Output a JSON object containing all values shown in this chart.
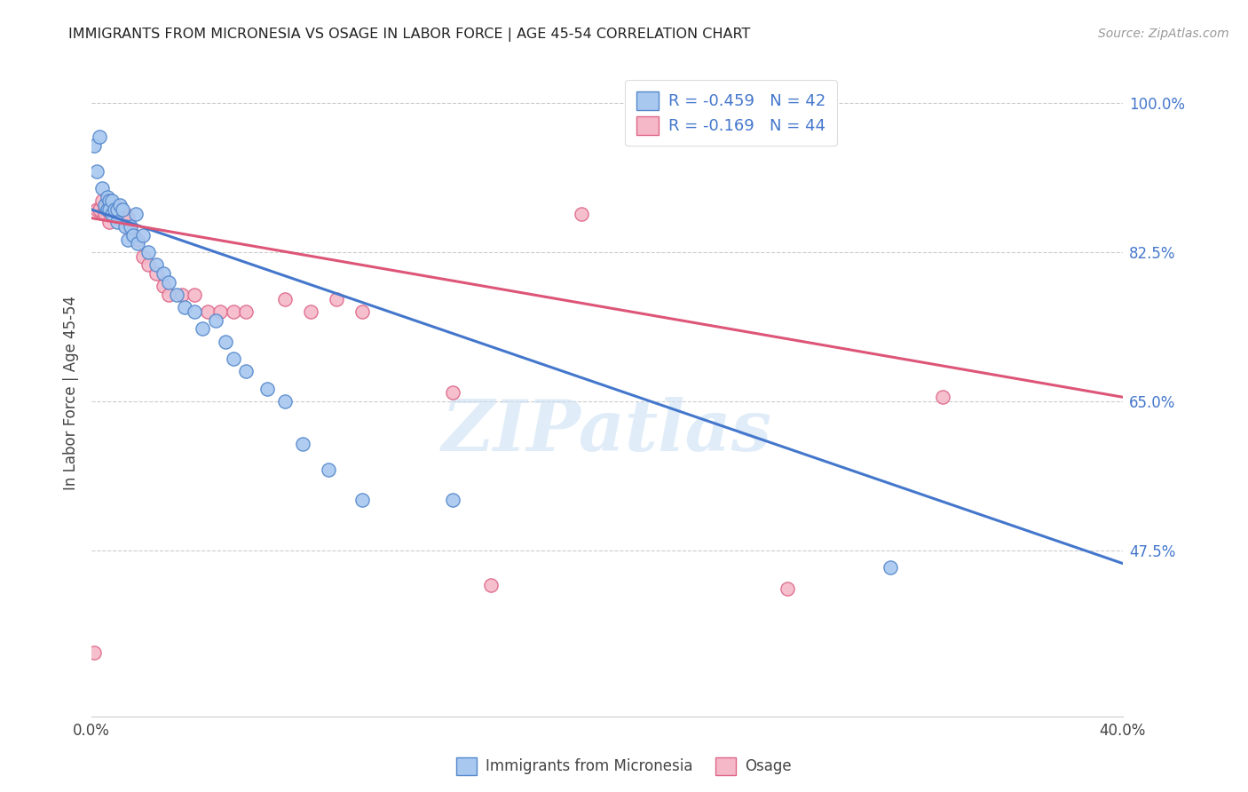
{
  "title": "IMMIGRANTS FROM MICRONESIA VS OSAGE IN LABOR FORCE | AGE 45-54 CORRELATION CHART",
  "source": "Source: ZipAtlas.com",
  "ylabel": "In Labor Force | Age 45-54",
  "xlim": [
    0.0,
    0.4
  ],
  "ylim": [
    0.28,
    1.04
  ],
  "xtick_labels": [
    "0.0%",
    "40.0%"
  ],
  "xtick_values": [
    0.0,
    0.4
  ],
  "ytick_labels": [
    "100.0%",
    "82.5%",
    "65.0%",
    "47.5%"
  ],
  "ytick_values": [
    1.0,
    0.825,
    0.65,
    0.475
  ],
  "legend_r_blue": "-0.459",
  "legend_n_blue": "42",
  "legend_r_pink": "-0.169",
  "legend_n_pink": "44",
  "blue_color": "#a8c8f0",
  "pink_color": "#f5b8c8",
  "blue_edge_color": "#5588cc",
  "pink_edge_color": "#dd6688",
  "blue_line_color": "#4477cc",
  "pink_line_color": "#dd5577",
  "watermark": "ZIPatlas",
  "blue_scatter_x": [
    0.001,
    0.002,
    0.003,
    0.004,
    0.005,
    0.006,
    0.006,
    0.007,
    0.007,
    0.008,
    0.008,
    0.009,
    0.01,
    0.01,
    0.011,
    0.012,
    0.013,
    0.014,
    0.015,
    0.016,
    0.017,
    0.018,
    0.02,
    0.022,
    0.025,
    0.028,
    0.03,
    0.033,
    0.036,
    0.04,
    0.043,
    0.048,
    0.052,
    0.055,
    0.06,
    0.068,
    0.075,
    0.082,
    0.092,
    0.105,
    0.14,
    0.31
  ],
  "blue_scatter_y": [
    0.95,
    0.92,
    0.96,
    0.9,
    0.88,
    0.875,
    0.89,
    0.885,
    0.875,
    0.885,
    0.87,
    0.875,
    0.875,
    0.86,
    0.88,
    0.875,
    0.855,
    0.84,
    0.855,
    0.845,
    0.87,
    0.835,
    0.845,
    0.825,
    0.81,
    0.8,
    0.79,
    0.775,
    0.76,
    0.755,
    0.735,
    0.745,
    0.72,
    0.7,
    0.685,
    0.665,
    0.65,
    0.6,
    0.57,
    0.535,
    0.535,
    0.455
  ],
  "pink_scatter_x": [
    0.001,
    0.002,
    0.003,
    0.004,
    0.005,
    0.005,
    0.006,
    0.006,
    0.007,
    0.007,
    0.008,
    0.008,
    0.009,
    0.009,
    0.01,
    0.01,
    0.011,
    0.011,
    0.012,
    0.013,
    0.014,
    0.015,
    0.016,
    0.018,
    0.02,
    0.022,
    0.025,
    0.028,
    0.03,
    0.035,
    0.04,
    0.045,
    0.05,
    0.055,
    0.06,
    0.075,
    0.085,
    0.095,
    0.105,
    0.14,
    0.155,
    0.19,
    0.27,
    0.33
  ],
  "pink_scatter_y": [
    0.355,
    0.875,
    0.875,
    0.885,
    0.875,
    0.87,
    0.875,
    0.885,
    0.875,
    0.86,
    0.87,
    0.875,
    0.88,
    0.875,
    0.87,
    0.87,
    0.87,
    0.875,
    0.87,
    0.87,
    0.865,
    0.85,
    0.845,
    0.84,
    0.82,
    0.81,
    0.8,
    0.785,
    0.775,
    0.775,
    0.775,
    0.755,
    0.755,
    0.755,
    0.755,
    0.77,
    0.755,
    0.77,
    0.755,
    0.66,
    0.435,
    0.87,
    0.43,
    0.655
  ],
  "blue_trend_x": [
    0.0,
    0.4
  ],
  "blue_trend_y": [
    0.875,
    0.46
  ],
  "pink_trend_x": [
    0.0,
    0.4
  ],
  "pink_trend_y": [
    0.865,
    0.655
  ]
}
